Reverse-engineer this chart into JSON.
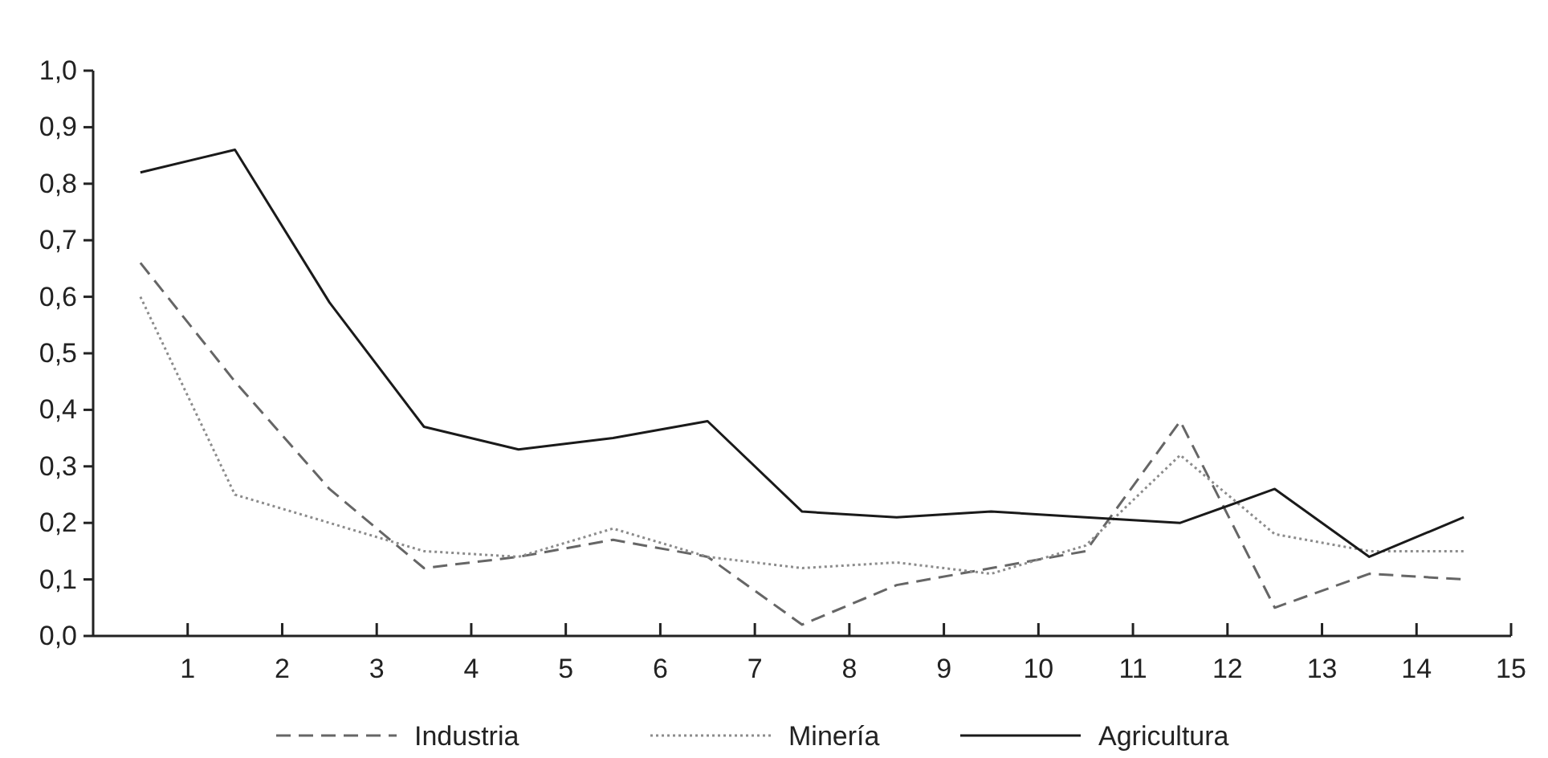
{
  "chart_data": {
    "type": "line",
    "x": [
      0.5,
      1.5,
      2.5,
      3.5,
      4.5,
      5.5,
      6.5,
      7.5,
      8.5,
      9.5,
      10.5,
      11.5,
      12.5,
      13.5,
      14.5
    ],
    "xlim": [
      0,
      15
    ],
    "xticks": [
      1,
      2,
      3,
      4,
      5,
      6,
      7,
      8,
      9,
      10,
      11,
      12,
      13,
      14,
      15
    ],
    "ylim": [
      0,
      1
    ],
    "yticks": [
      {
        "value": 0,
        "label": "0,0"
      },
      {
        "value": 0.1,
        "label": "0,1"
      },
      {
        "value": 0.2,
        "label": "0,2"
      },
      {
        "value": 0.3,
        "label": "0,3"
      },
      {
        "value": 0.4,
        "label": "0,4"
      },
      {
        "value": 0.5,
        "label": "0,5"
      },
      {
        "value": 0.6,
        "label": "0,6"
      },
      {
        "value": 0.7,
        "label": "0,7"
      },
      {
        "value": 0.8,
        "label": "0,8"
      },
      {
        "value": 0.9,
        "label": "0,9"
      },
      {
        "value": 1,
        "label": "1,0"
      }
    ],
    "legend": "bottom",
    "grid": false,
    "series": [
      {
        "name": "Industria",
        "color": "#666666",
        "line_style": "dashed",
        "values": [
          0.66,
          0.45,
          0.26,
          0.12,
          0.14,
          0.17,
          0.14,
          0.02,
          0.09,
          0.12,
          0.15,
          0.38,
          0.05,
          0.11,
          0.1
        ]
      },
      {
        "name": "Minería",
        "color": "#8c8c8c",
        "line_style": "dotted",
        "values": [
          0.6,
          0.25,
          0.2,
          0.15,
          0.14,
          0.19,
          0.14,
          0.12,
          0.13,
          0.11,
          0.16,
          0.32,
          0.18,
          0.15,
          0.15
        ]
      },
      {
        "name": "Agricultura",
        "color": "#1a1a1a",
        "line_style": "solid",
        "values": [
          0.82,
          0.86,
          0.59,
          0.37,
          0.33,
          0.35,
          0.38,
          0.22,
          0.21,
          0.22,
          0.21,
          0.2,
          0.26,
          0.14,
          0.21
        ]
      }
    ]
  }
}
